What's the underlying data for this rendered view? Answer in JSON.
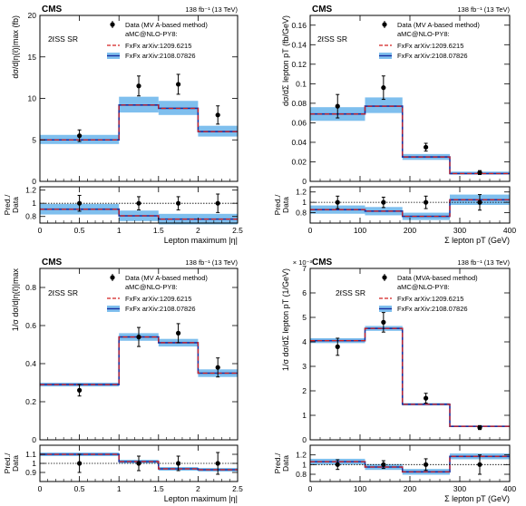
{
  "legend": {
    "data_mva": "Data (MVA-based method)",
    "data_mv": "Data (MV A-based method)",
    "amc_header": "aMC@NLO-PY8:",
    "fxfx1": "FxFx arXiv:1209.6215",
    "fxfx2": "FxFx arXiv:2108.07826"
  },
  "colors": {
    "band": "#7fbfee",
    "band_edge": "#4aa0e0",
    "line_blue": "#1a2f9e",
    "line_red": "#d42020",
    "data": "#000000"
  },
  "ratio_label_1": "Pred./",
  "ratio_label_2": "Data",
  "chart_data": [
    {
      "type": "bar",
      "panel": "top-left",
      "cms": "CMS",
      "lumi": "138 fb⁻¹ (13 TeV)",
      "region": "2ℓSS SR",
      "ylabel": "dσ/d|η(ℓ)|max (fb)",
      "xlabel": "Lepton maximum |η|",
      "xlim": [
        0,
        2.5
      ],
      "ylim": [
        0,
        20
      ],
      "xticks": [
        "0",
        "0.5",
        "1",
        "1.5",
        "2",
        "2.5"
      ],
      "yticks": [
        "0",
        "5",
        "10",
        "15",
        "20"
      ],
      "bins": [
        0,
        1,
        1.5,
        2,
        2.5
      ],
      "pred": [
        5.0,
        9.2,
        8.8,
        6.0
      ],
      "band": [
        [
          4.5,
          5.6
        ],
        [
          8.3,
          10.2
        ],
        [
          8.0,
          9.7
        ],
        [
          5.4,
          6.7
        ]
      ],
      "data": [
        {
          "x": 0.5,
          "y": 5.5,
          "err": 0.7
        },
        {
          "x": 1.25,
          "y": 11.5,
          "err": 1.2
        },
        {
          "x": 1.75,
          "y": 11.7,
          "err": 1.2
        },
        {
          "x": 2.25,
          "y": 8.0,
          "err": 1.1
        }
      ],
      "ratio": {
        "ylim": [
          0.7,
          1.25
        ],
        "yticks": [
          "0.8",
          "1",
          "1.2"
        ],
        "yvals": [
          0.8,
          1.0,
          1.2
        ],
        "pred": [
          0.91,
          0.81,
          0.76,
          0.76
        ],
        "band": [
          [
            0.83,
            0.99
          ],
          [
            0.73,
            0.89
          ],
          [
            0.68,
            0.84
          ],
          [
            0.68,
            0.84
          ]
        ],
        "data": [
          {
            "x": 0.5,
            "y": 1.0,
            "err": 0.12
          },
          {
            "x": 1.25,
            "y": 1.0,
            "err": 0.1
          },
          {
            "x": 1.75,
            "y": 1.0,
            "err": 0.1
          },
          {
            "x": 2.25,
            "y": 1.0,
            "err": 0.14
          }
        ]
      }
    },
    {
      "type": "bar",
      "panel": "top-right",
      "cms": "CMS",
      "lumi": "138 fb⁻¹ (13 TeV)",
      "region": "2ℓSS SR",
      "ylabel": "dσ/dΣ lepton pT (fb/GeV)",
      "xlabel": "Σ lepton pT (GeV)",
      "xlim": [
        0,
        400
      ],
      "ylim": [
        0,
        0.17
      ],
      "xticks": [
        "0",
        "100",
        "200",
        "300",
        "400"
      ],
      "yticks": [
        "0",
        "0.02",
        "0.04",
        "0.06",
        "0.08",
        "0.1",
        "0.12",
        "0.14",
        "0.16"
      ],
      "bins": [
        0,
        110,
        185,
        280,
        400
      ],
      "pred": [
        0.069,
        0.077,
        0.025,
        0.008
      ],
      "band": [
        [
          0.062,
          0.076
        ],
        [
          0.07,
          0.086
        ],
        [
          0.022,
          0.028
        ],
        [
          0.007,
          0.01
        ]
      ],
      "data": [
        {
          "x": 55,
          "y": 0.077,
          "err": 0.012
        },
        {
          "x": 147,
          "y": 0.096,
          "err": 0.012
        },
        {
          "x": 232,
          "y": 0.035,
          "err": 0.004
        },
        {
          "x": 340,
          "y": 0.009,
          "err": 0.002
        }
      ],
      "ratio": {
        "ylim": [
          0.6,
          1.3
        ],
        "yticks": [
          "0.8",
          "1",
          "1.2"
        ],
        "yvals": [
          0.8,
          1.0,
          1.2
        ],
        "pred": [
          0.86,
          0.83,
          0.73,
          1.05
        ],
        "band": [
          [
            0.78,
            0.94
          ],
          [
            0.75,
            0.91
          ],
          [
            0.66,
            0.8
          ],
          [
            0.95,
            1.15
          ]
        ],
        "data": [
          {
            "x": 55,
            "y": 1.0,
            "err": 0.12
          },
          {
            "x": 147,
            "y": 1.0,
            "err": 0.1
          },
          {
            "x": 232,
            "y": 1.0,
            "err": 0.12
          },
          {
            "x": 340,
            "y": 1.0,
            "err": 0.15
          }
        ]
      }
    },
    {
      "type": "bar",
      "panel": "bottom-left",
      "cms": "CMS",
      "lumi": "138 fb⁻¹ (13 TeV)",
      "region": "2ℓSS SR",
      "ylabel": "1/σ dσ/d|η(ℓ)|max",
      "xlabel": "Lepton maximum |η|",
      "xlim": [
        0,
        2.5
      ],
      "ylim": [
        0,
        0.9
      ],
      "xticks": [
        "0",
        "0.5",
        "1",
        "1.5",
        "2",
        "2.5"
      ],
      "yticks": [
        "0",
        "0.2",
        "0.4",
        "0.6",
        "0.8"
      ],
      "bins": [
        0,
        1,
        1.5,
        2,
        2.5
      ],
      "pred": [
        0.29,
        0.54,
        0.51,
        0.35
      ],
      "band": [
        [
          0.28,
          0.3
        ],
        [
          0.52,
          0.56
        ],
        [
          0.49,
          0.53
        ],
        [
          0.33,
          0.37
        ]
      ],
      "data": [
        {
          "x": 0.5,
          "y": 0.26,
          "err": 0.03
        },
        {
          "x": 1.25,
          "y": 0.54,
          "err": 0.05
        },
        {
          "x": 1.75,
          "y": 0.56,
          "err": 0.05
        },
        {
          "x": 2.25,
          "y": 0.38,
          "err": 0.05
        }
      ],
      "ratio": {
        "ylim": [
          0.8,
          1.2
        ],
        "yticks": [
          "0.9",
          "1",
          "1.1"
        ],
        "yvals": [
          0.9,
          1.0,
          1.1
        ],
        "pred": [
          1.1,
          1.02,
          0.94,
          0.93
        ],
        "band": [
          [
            1.08,
            1.12
          ],
          [
            1.0,
            1.04
          ],
          [
            0.92,
            0.96
          ],
          [
            0.91,
            0.95
          ]
        ],
        "data": [
          {
            "x": 0.5,
            "y": 1.0,
            "err": 0.1
          },
          {
            "x": 1.25,
            "y": 1.0,
            "err": 0.08
          },
          {
            "x": 1.75,
            "y": 1.0,
            "err": 0.08
          },
          {
            "x": 2.25,
            "y": 1.0,
            "err": 0.12
          }
        ]
      }
    },
    {
      "type": "bar",
      "panel": "bottom-right",
      "cms": "CMS",
      "lumi": "138 fb⁻¹ (13 TeV)",
      "region": "2ℓSS SR",
      "scale": "× 10⁻³",
      "ylabel": "1/σ dσ/dΣ lepton pT (1/GeV)",
      "xlabel": "Σ lepton pT (GeV)",
      "xlim": [
        0,
        400
      ],
      "ylim": [
        0,
        7
      ],
      "xticks": [
        "0",
        "100",
        "200",
        "300",
        "400"
      ],
      "yticks": [
        "0",
        "1",
        "2",
        "3",
        "4",
        "5",
        "6",
        "7"
      ],
      "bins": [
        0,
        110,
        185,
        280,
        400
      ],
      "pred": [
        4.05,
        4.55,
        1.45,
        0.55
      ],
      "band": [
        [
          3.95,
          4.15
        ],
        [
          4.45,
          4.65
        ],
        [
          1.4,
          1.5
        ],
        [
          0.52,
          0.58
        ]
      ],
      "data": [
        {
          "x": 55,
          "y": 3.8,
          "err": 0.35
        },
        {
          "x": 147,
          "y": 4.8,
          "err": 0.4
        },
        {
          "x": 232,
          "y": 1.7,
          "err": 0.2
        },
        {
          "x": 340,
          "y": 0.5,
          "err": 0.08
        }
      ],
      "ratio": {
        "ylim": [
          0.65,
          1.4
        ],
        "yticks": [
          "0.8",
          "1",
          "1.2"
        ],
        "yvals": [
          0.8,
          1.0,
          1.2
        ],
        "pred": [
          1.06,
          0.95,
          0.85,
          1.17
        ],
        "band": [
          [
            1.0,
            1.12
          ],
          [
            0.89,
            1.01
          ],
          [
            0.79,
            0.91
          ],
          [
            1.11,
            1.23
          ]
        ],
        "data": [
          {
            "x": 55,
            "y": 1.0,
            "err": 0.1
          },
          {
            "x": 147,
            "y": 1.0,
            "err": 0.08
          },
          {
            "x": 232,
            "y": 1.0,
            "err": 0.12
          },
          {
            "x": 340,
            "y": 1.0,
            "err": 0.2
          }
        ]
      }
    }
  ]
}
